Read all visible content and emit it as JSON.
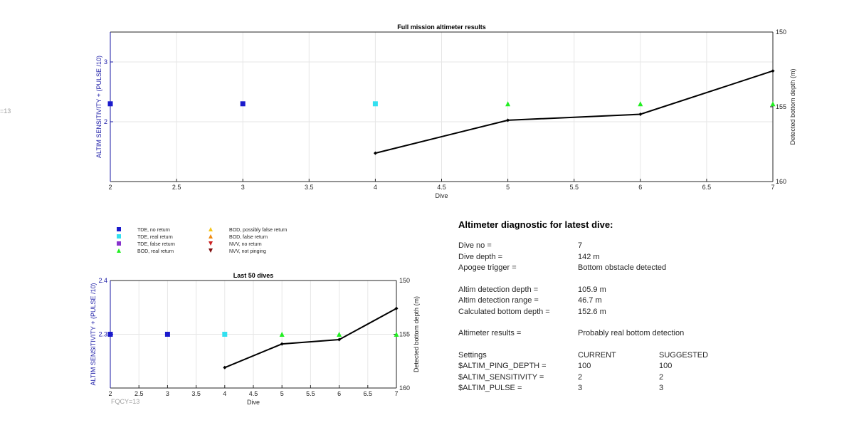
{
  "chart_data": [
    {
      "type": "scatter",
      "title": "Full mission altimeter results",
      "xlabel": "Dive",
      "ylabel": "ALTIM SENSITIVITY + (PULSE /10)",
      "y2label": "Detected bottom depth (m)",
      "xlim": [
        2,
        7
      ],
      "ylim": [
        1,
        3.5
      ],
      "y2lim": [
        160,
        150
      ],
      "y2_reversed": true,
      "xticks": [
        "2",
        "2.5",
        "3",
        "3.5",
        "4",
        "4.5",
        "5",
        "5.5",
        "6",
        "6.5",
        "7"
      ],
      "yticks": [
        "2",
        "3"
      ],
      "y2ticks": [
        "150",
        "155",
        "160"
      ],
      "grid": true,
      "series": [
        {
          "name": "TDE, no return",
          "marker": "square",
          "color": "#1a1acc",
          "x": [
            2,
            3
          ],
          "y": [
            2.3,
            2.3
          ]
        },
        {
          "name": "TDE, real return",
          "marker": "square",
          "color": "#33e0f0",
          "x": [
            4
          ],
          "y": [
            2.3
          ]
        },
        {
          "name": "BOD, real return",
          "marker": "triangle-up",
          "color": "#22ee22",
          "x": [
            5,
            6,
            7
          ],
          "y": [
            2.3,
            2.3,
            2.3
          ]
        }
      ],
      "bottom_depth": {
        "x": [
          4,
          5,
          6,
          7
        ],
        "y": [
          158.1,
          155.9,
          155.5,
          152.6
        ],
        "color": "#000000"
      }
    },
    {
      "type": "scatter",
      "title": "Last 50 dives",
      "xlabel": "Dive",
      "ylabel": "ALTIM SENSITIVITY + (PULSE /10)",
      "y2label": "Detected bottom depth (m)",
      "xlim": [
        2,
        7
      ],
      "ylim": [
        2.2,
        2.4
      ],
      "y2lim": [
        160,
        150
      ],
      "y2_reversed": true,
      "xticks": [
        "2",
        "2.5",
        "3",
        "3.5",
        "4",
        "4.5",
        "5",
        "5.5",
        "6",
        "6.5",
        "7"
      ],
      "yticks": [
        "2.3",
        "2.4"
      ],
      "y2ticks": [
        "150",
        "155",
        "160"
      ],
      "grid": true,
      "series": [
        {
          "name": "TDE, no return",
          "marker": "square",
          "color": "#1a1acc",
          "x": [
            2,
            3
          ],
          "y": [
            2.3,
            2.3
          ]
        },
        {
          "name": "TDE, real return",
          "marker": "square",
          "color": "#33e0f0",
          "x": [
            4
          ],
          "y": [
            2.3
          ]
        },
        {
          "name": "BOD, real return",
          "marker": "triangle-up",
          "color": "#22ee22",
          "x": [
            5,
            6,
            7
          ],
          "y": [
            2.3,
            2.3,
            2.3
          ]
        }
      ],
      "bottom_depth": {
        "x": [
          4,
          5,
          6,
          7
        ],
        "y": [
          158.1,
          155.9,
          155.5,
          152.6
        ],
        "color": "#000000"
      }
    }
  ],
  "legend": [
    {
      "label": "TDE, no return",
      "marker": "square",
      "color": "#1a1acc"
    },
    {
      "label": "TDE, real return",
      "marker": "square",
      "color": "#33e0f0"
    },
    {
      "label": "TDE, false return",
      "marker": "square",
      "color": "#8833cc"
    },
    {
      "label": "BOD, real return",
      "marker": "triangle-up",
      "color": "#22ee22"
    },
    {
      "label": "BOD, possibly false return",
      "marker": "triangle-up",
      "color": "#f5c518"
    },
    {
      "label": "BOD, false return",
      "marker": "triangle-up",
      "color": "#f08a10"
    },
    {
      "label": "NVV, no return",
      "marker": "triangle-down",
      "color": "#cc2020"
    },
    {
      "label": "NVV, not pinging",
      "marker": "triangle-down",
      "color": "#801010"
    }
  ],
  "fqcy_left": "=13",
  "fqcy_bottom": "FQCY=13",
  "diagnostic": {
    "title": "Altimeter diagnostic for latest dive:",
    "dive_no_label": "Dive no =",
    "dive_no": "7",
    "dive_depth_label": "Dive depth =",
    "dive_depth": "142 m",
    "apogee_label": "Apogee trigger =",
    "apogee": "Bottom obstacle detected",
    "det_depth_label": "Altim detection depth =",
    "det_depth": "105.9 m",
    "det_range_label": "Altim detection range =",
    "det_range": "46.7 m",
    "calc_depth_label": "Calculated bottom depth =",
    "calc_depth": "152.6 m",
    "results_label": "Altimeter results =",
    "results": "Probably real bottom detection",
    "settings_label": "Settings",
    "current_label": "CURRENT",
    "suggested_label": "SUGGESTED",
    "ping_label": "$ALTIM_PING_DEPTH =",
    "ping_current": "100",
    "ping_suggested": "100",
    "sens_label": "$ALTIM_SENSITIVITY =",
    "sens_current": "2",
    "sens_suggested": "2",
    "pulse_label": "$ALTIM_PULSE =",
    "pulse_current": "3",
    "pulse_suggested": "3"
  }
}
